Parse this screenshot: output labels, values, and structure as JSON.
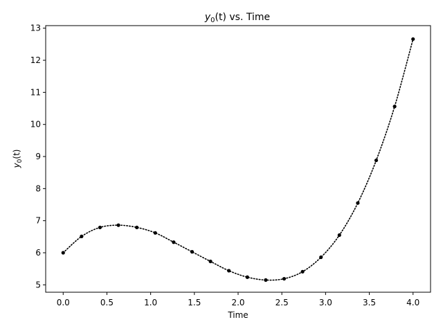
{
  "chart_data": {
    "type": "line",
    "title": {
      "var": "y",
      "sub": "0",
      "arg": "(t)",
      "rest": " vs. Time"
    },
    "xlabel": "Time",
    "ylabel": {
      "var": "y",
      "sub": "0",
      "arg": "(t)"
    },
    "xlim": [
      -0.2,
      4.2
    ],
    "ylim": [
      4.77,
      13.08
    ],
    "xticks": [
      0.0,
      0.5,
      1.0,
      1.5,
      2.0,
      2.5,
      3.0,
      3.5,
      4.0
    ],
    "xtick_labels": [
      "0.0",
      "0.5",
      "1.0",
      "1.5",
      "2.0",
      "2.5",
      "3.0",
      "3.5",
      "4.0"
    ],
    "yticks": [
      5,
      6,
      7,
      8,
      9,
      10,
      11,
      12,
      13
    ],
    "ytick_labels": [
      "5",
      "6",
      "7",
      "8",
      "9",
      "10",
      "11",
      "12",
      "13"
    ],
    "grid": false,
    "series": [
      {
        "style": "dotted line with point markers",
        "color": "#000000",
        "x": [
          0.0,
          0.2105,
          0.4211,
          0.6316,
          0.8421,
          1.0526,
          1.2632,
          1.4737,
          1.6842,
          1.8947,
          2.1053,
          2.3158,
          2.5263,
          2.7368,
          2.9474,
          3.1579,
          3.3684,
          3.5789,
          3.7895,
          4.0
        ],
        "y": [
          6.0,
          6.51,
          6.79,
          6.86,
          6.79,
          6.62,
          6.33,
          6.03,
          5.73,
          5.44,
          5.24,
          5.15,
          5.19,
          5.41,
          5.86,
          6.55,
          7.55,
          8.88,
          10.56,
          12.66
        ]
      }
    ]
  }
}
